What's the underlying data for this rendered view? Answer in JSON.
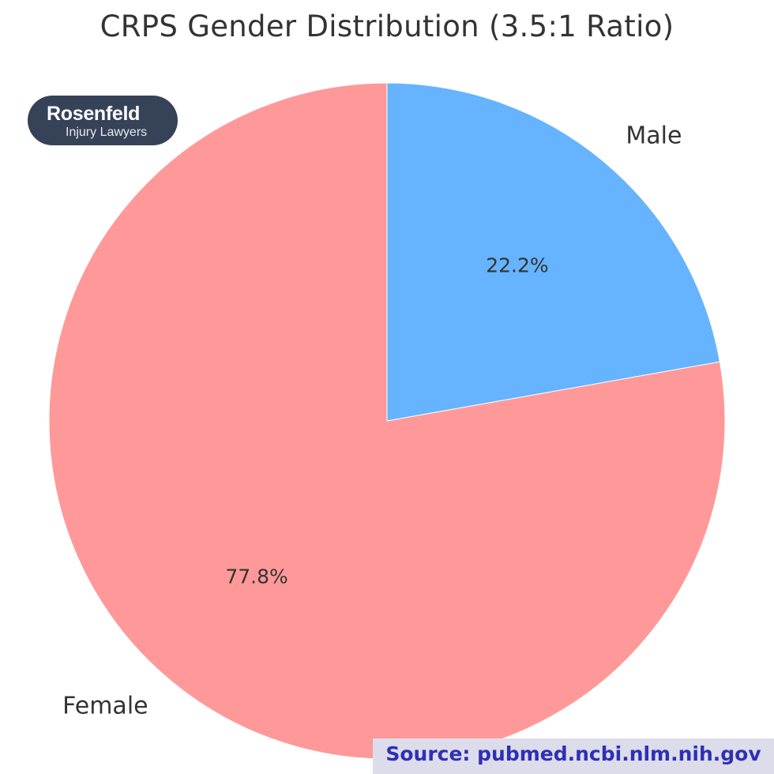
{
  "chart_data": {
    "type": "pie",
    "title": "CRPS Gender Distribution (3.5:1 Ratio)",
    "start_angle": "top, clockwise",
    "slices": [
      {
        "name": "Male",
        "value": 22.2,
        "label": "22.2%",
        "color": "#66b3ff"
      },
      {
        "name": "Female",
        "value": 77.8,
        "label": "77.8%",
        "color": "#ff9999"
      }
    ]
  },
  "logo": {
    "brand": "Rosenfeld",
    "tagline": "Injury Lawyers"
  },
  "source": {
    "text": "Source: pubmed.ncbi.nlm.nih.gov",
    "text_color": "#2f2fb4",
    "background": "#dcdcea"
  }
}
